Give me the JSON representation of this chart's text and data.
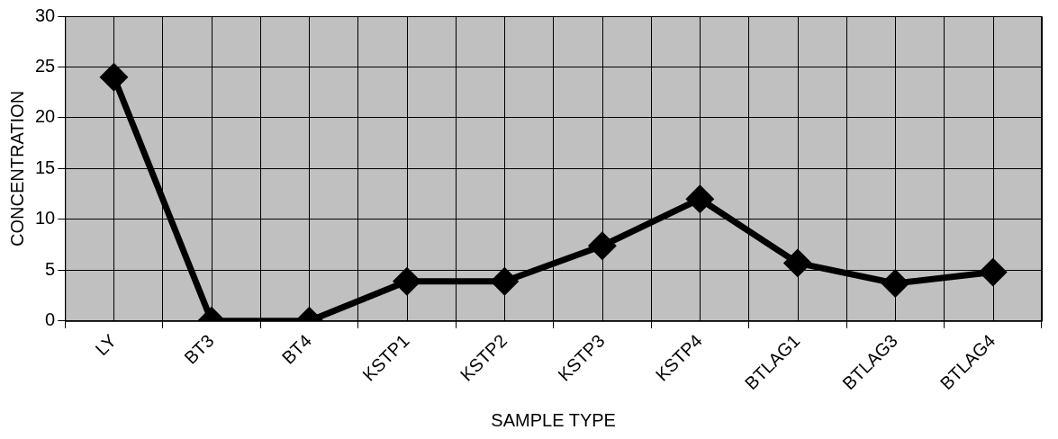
{
  "chart_data": {
    "type": "line",
    "xlabel": "SAMPLE TYPE",
    "ylabel": "CONCENTRATION",
    "categories": [
      "LY",
      "BT3",
      "BT4",
      "KSTP1",
      "KSTP2",
      "KSTP3",
      "KSTP4",
      "BTLAG1",
      "BTLAG3",
      "BTLAG4"
    ],
    "series": [
      {
        "color": "#000000",
        "values": [
          24,
          0,
          0,
          3.9,
          3.9,
          7.4,
          12,
          5.7,
          3.7,
          4.8
        ]
      }
    ],
    "ylim": [
      0,
      30
    ],
    "yticks": [
      0,
      5,
      10,
      15,
      20,
      25,
      30
    ],
    "grid": true,
    "legend": false,
    "marker": "diamond",
    "line_style": "solid"
  }
}
